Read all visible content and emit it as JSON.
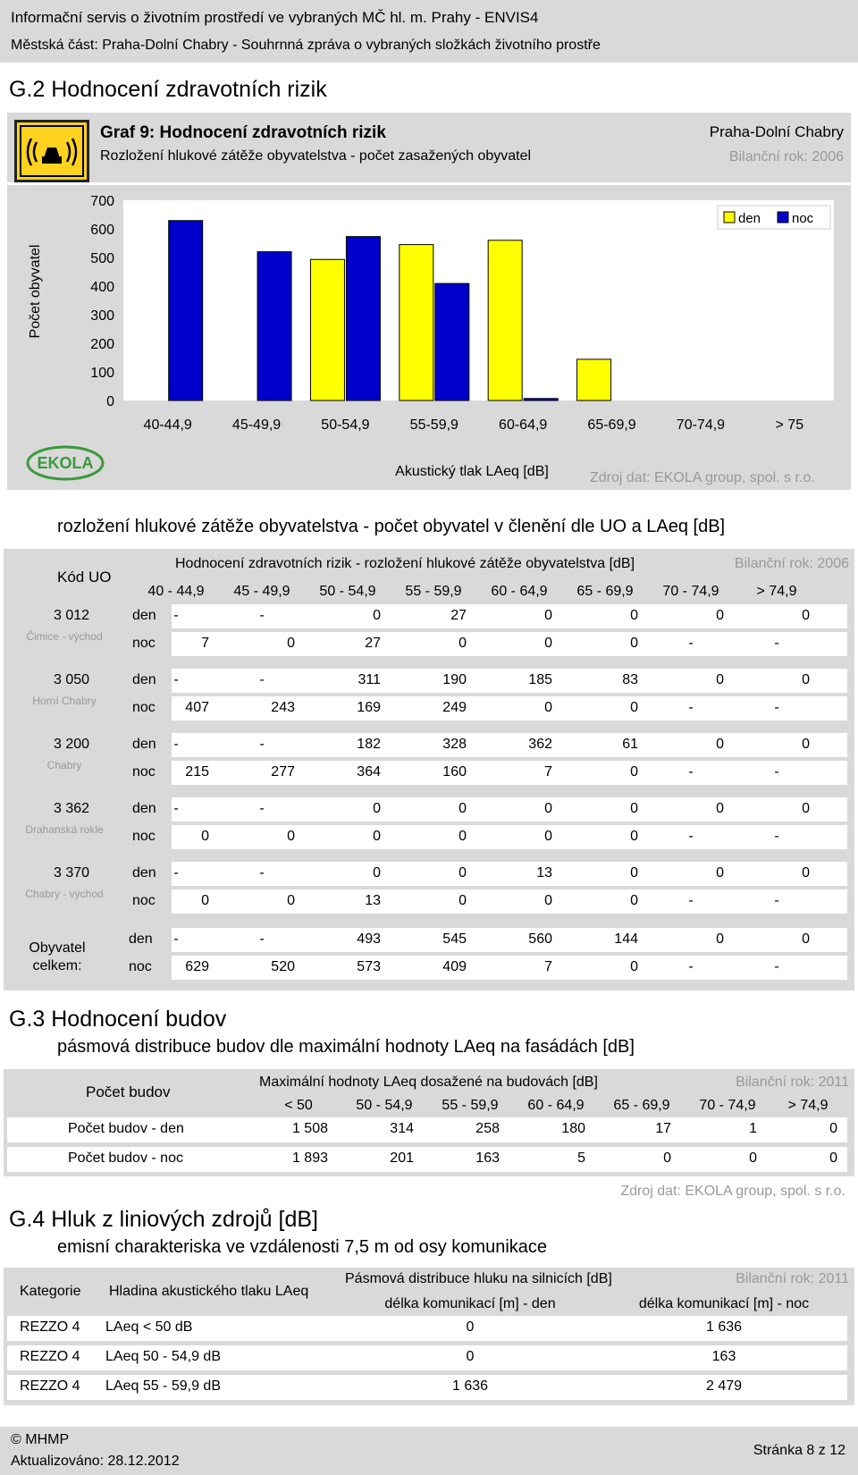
{
  "header": {
    "line1": "Informační servis o životním prostředí ve vybraných MČ hl. m. Prahy - ENVIS4",
    "line2": "Městská část: Praha-Dolní Chabry - Souhrnná zpráva o vybraných složkách životního prostře"
  },
  "g2": {
    "title": "G.2  Hodnocení zdravotních rizik",
    "graph_title": "Graf 9: Hodnocení zdravotních rizik",
    "graph_subtitle": "Rozložení hlukové zátěže obyvatelstva - počet zasažených obyvatel",
    "district": "Praha-Dolní Chabry",
    "year": "Bilanční rok: 2006",
    "source": "Zdroj dat: EKOLA group, spol. s r.o.",
    "logo_text": "EKOLA",
    "table_title": "rozložení hlukové zátěže obyvatelstva - počet obyvatel v členění dle UO a LAeq [dB]",
    "table_header": "Hodnocení zdravotních rizik - rozložení hlukové zátěže obyvatelstva [dB]",
    "table_year": "Bilanční rok: 2006",
    "kod_uo": "Kód UO",
    "columns": [
      "40 - 44,9",
      "45 - 49,9",
      "50 - 54,9",
      "55 - 59,9",
      "60 - 64,9",
      "65 - 69,9",
      "70 - 74,9",
      "> 74,9"
    ],
    "rows": [
      {
        "code": "3 012",
        "name": "Čimice - východ",
        "den": [
          "-",
          "-",
          "0",
          "27",
          "0",
          "0",
          "0",
          "0"
        ],
        "noc": [
          "7",
          "0",
          "27",
          "0",
          "0",
          "0",
          "-",
          "-"
        ]
      },
      {
        "code": "3 050",
        "name": "Horní Chabry",
        "den": [
          "-",
          "-",
          "311",
          "190",
          "185",
          "83",
          "0",
          "0"
        ],
        "noc": [
          "407",
          "243",
          "169",
          "249",
          "0",
          "0",
          "-",
          "-"
        ]
      },
      {
        "code": "3 200",
        "name": "Chabry",
        "den": [
          "-",
          "-",
          "182",
          "328",
          "362",
          "61",
          "0",
          "0"
        ],
        "noc": [
          "215",
          "277",
          "364",
          "160",
          "7",
          "0",
          "-",
          "-"
        ]
      },
      {
        "code": "3 362",
        "name": "Drahanská rokle",
        "den": [
          "-",
          "-",
          "0",
          "0",
          "0",
          "0",
          "0",
          "0"
        ],
        "noc": [
          "0",
          "0",
          "0",
          "0",
          "0",
          "0",
          "-",
          "-"
        ]
      },
      {
        "code": "3 370",
        "name": "Chabry - východ",
        "den": [
          "-",
          "-",
          "0",
          "0",
          "13",
          "0",
          "0",
          "0"
        ],
        "noc": [
          "0",
          "0",
          "13",
          "0",
          "0",
          "0",
          "-",
          "-"
        ]
      }
    ],
    "den_label": "den",
    "noc_label": "noc",
    "total_label_1": "Obyvatel",
    "total_label_2": "celkem:",
    "total_den": [
      "-",
      "-",
      "493",
      "545",
      "560",
      "144",
      "0",
      "0"
    ],
    "total_noc": [
      "629",
      "520",
      "573",
      "409",
      "7",
      "0",
      "-",
      "-"
    ]
  },
  "chart_data": {
    "type": "bar",
    "categories": [
      "40-44,9",
      "45-49,9",
      "50-54,9",
      "55-59,9",
      "60-64,9",
      "65-69,9",
      "70-74,9",
      "> 75"
    ],
    "series": [
      {
        "name": "den",
        "values": [
          0,
          0,
          493,
          545,
          560,
          144,
          0,
          0
        ]
      },
      {
        "name": "noc",
        "values": [
          629,
          520,
          573,
          409,
          7,
          0,
          0,
          0
        ]
      }
    ],
    "xlabel": "Akustický tlak LAeq [dB]",
    "ylabel": "Počet obyvatel",
    "ylim": [
      0,
      700
    ],
    "yticks": [
      "0",
      "100",
      "200",
      "300",
      "400",
      "500",
      "600",
      "700"
    ],
    "legend": "top-right",
    "colors": {
      "den": "#ffff00",
      "noc": "#0000cc"
    }
  },
  "g3": {
    "title": "G.3  Hodnocení budov",
    "subtitle": "pásmová distribuce budov dle maximální hodnoty LAeq na fasádách [dB]",
    "row_header": "Počet budov",
    "header": "Maximální hodnoty LAeq dosažené na budovách [dB]",
    "year": "Bilanční rok: 2011",
    "columns": [
      "< 50",
      "50 - 54,9",
      "55 - 59,9",
      "60 - 64,9",
      "65 - 69,9",
      "70 - 74,9",
      "> 74,9"
    ],
    "rows": [
      {
        "label": "Počet budov - den",
        "values": [
          "1 508",
          "314",
          "258",
          "180",
          "17",
          "1",
          "0"
        ]
      },
      {
        "label": "Počet budov - noc",
        "values": [
          "1 893",
          "201",
          "163",
          "5",
          "0",
          "0",
          "0"
        ]
      }
    ],
    "source": "Zdroj dat: EKOLA group, spol. s r.o."
  },
  "g4": {
    "title": "G.4  Hluk z liniových zdrojů [dB]",
    "subtitle": "emisní charakteriska ve vzdálenosti 7,5 m od osy komunikace",
    "col_kategorie": "Kategorie",
    "col_hladina": "Hladina akustického tlaku LAeq",
    "header": "Pásmová distribuce hluku na silnicích [dB]",
    "year": "Bilanční rok: 2011",
    "col_den": "délka komunikací [m] - den",
    "col_noc": "délka komunikací [m] - noc",
    "rows": [
      {
        "kat": "REZZO 4",
        "hl": "LAeq < 50 dB",
        "den": "0",
        "noc": "1 636"
      },
      {
        "kat": "REZZO 4",
        "hl": "LAeq 50 - 54,9 dB",
        "den": "0",
        "noc": "163"
      },
      {
        "kat": "REZZO 4",
        "hl": "LAeq 55 - 59,9 dB",
        "den": "1 636",
        "noc": "2 479"
      }
    ]
  },
  "footer": {
    "copyright": "© MHMP",
    "updated": "Aktualizováno: 28.12.2012",
    "page": "Stránka 8 z 12"
  }
}
